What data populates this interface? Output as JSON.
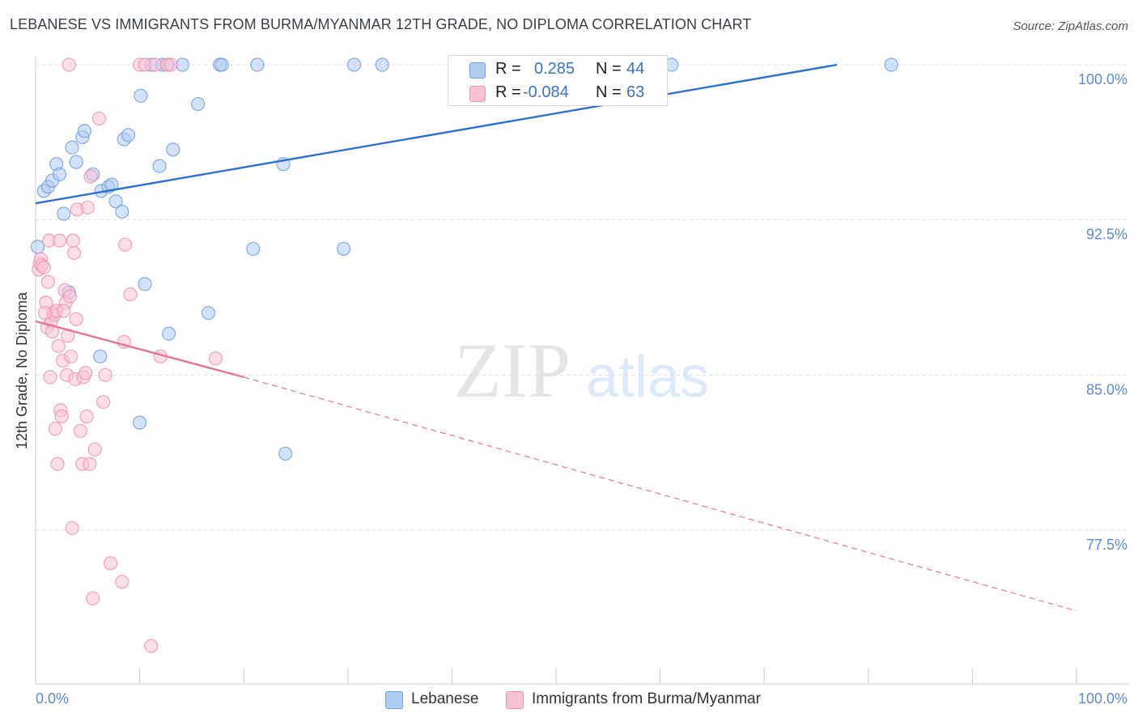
{
  "title": "LEBANESE VS IMMIGRANTS FROM BURMA/MYANMAR 12TH GRADE, NO DIPLOMA CORRELATION CHART",
  "source": "Source: ZipAtlas.com",
  "watermark": {
    "zip": "ZIP",
    "atlas": "atlas"
  },
  "legend": {
    "r_label": "R =",
    "n_label": "N =",
    "rows": [
      {
        "r": "0.285",
        "n": "44",
        "color": "#aecbf0",
        "border": "#6f9fe0"
      },
      {
        "r": "-0.084",
        "n": "63",
        "color": "#f8c4d4",
        "border": "#ee92b0"
      }
    ]
  },
  "chart_data": {
    "type": "scatter",
    "title": "LEBANESE VS IMMIGRANTS FROM BURMA/MYANMAR 12TH GRADE, NO DIPLOMA CORRELATION CHART",
    "xlabel": "",
    "ylabel": "12th Grade, No Diploma",
    "xlim": [
      0,
      100
    ],
    "ylim": [
      70.5,
      101.2
    ],
    "x_tick_labels": [
      "0.0%",
      "100.0%"
    ],
    "y_ticks": [
      100.0,
      92.5,
      85.0,
      77.5
    ],
    "y_tick_labels": [
      "100.0%",
      "92.5%",
      "85.0%",
      "77.5%"
    ],
    "series": [
      {
        "name": "Lebanese",
        "color": "#6f9fe0",
        "fill": "#aecbf0",
        "points": [
          [
            0.2,
            91.2
          ],
          [
            0.8,
            93.9
          ],
          [
            1.2,
            94.1
          ],
          [
            1.6,
            94.4
          ],
          [
            2.0,
            95.2
          ],
          [
            2.3,
            94.7
          ],
          [
            2.7,
            92.8
          ],
          [
            3.2,
            89.0
          ],
          [
            3.5,
            96.0
          ],
          [
            3.9,
            95.3
          ],
          [
            4.5,
            96.5
          ],
          [
            4.7,
            96.8
          ],
          [
            5.5,
            94.7
          ],
          [
            6.2,
            85.9
          ],
          [
            6.3,
            93.9
          ],
          [
            7.0,
            94.1
          ],
          [
            7.3,
            94.2
          ],
          [
            7.7,
            93.4
          ],
          [
            8.3,
            92.9
          ],
          [
            8.5,
            96.4
          ],
          [
            8.9,
            96.6
          ],
          [
            10.0,
            82.7
          ],
          [
            10.1,
            98.5
          ],
          [
            10.5,
            89.4
          ],
          [
            11.1,
            100.0
          ],
          [
            11.9,
            95.1
          ],
          [
            12.2,
            100.0
          ],
          [
            12.7,
            100.0
          ],
          [
            12.8,
            87.0
          ],
          [
            13.2,
            95.9
          ],
          [
            14.1,
            100.0
          ],
          [
            15.6,
            98.1
          ],
          [
            16.6,
            88.0
          ],
          [
            17.7,
            100.0
          ],
          [
            17.9,
            100.0
          ],
          [
            20.9,
            91.1
          ],
          [
            21.3,
            100.0
          ],
          [
            23.8,
            95.2
          ],
          [
            24.0,
            81.2
          ],
          [
            29.6,
            91.1
          ],
          [
            30.6,
            100.0
          ],
          [
            33.3,
            100.0
          ],
          [
            61.1,
            100.0
          ],
          [
            82.2,
            100.0
          ]
        ]
      },
      {
        "name": "Immigrants from Burma/Myanmar",
        "color": "#ee92b0",
        "fill": "#f8c4d4",
        "points": [
          [
            0.3,
            90.1
          ],
          [
            0.4,
            90.4
          ],
          [
            0.5,
            90.6
          ],
          [
            0.6,
            90.3
          ],
          [
            0.8,
            90.2
          ],
          [
            1.0,
            88.5
          ],
          [
            1.1,
            87.3
          ],
          [
            1.2,
            89.5
          ],
          [
            1.3,
            91.5
          ],
          [
            1.4,
            84.9
          ],
          [
            1.5,
            87.6
          ],
          [
            1.6,
            87.1
          ],
          [
            1.7,
            88.0
          ],
          [
            1.8,
            87.9
          ],
          [
            1.9,
            82.4
          ],
          [
            2.0,
            88.1
          ],
          [
            2.1,
            80.7
          ],
          [
            2.2,
            86.4
          ],
          [
            2.3,
            91.5
          ],
          [
            2.4,
            83.3
          ],
          [
            2.5,
            83.0
          ],
          [
            2.6,
            85.7
          ],
          [
            2.8,
            89.1
          ],
          [
            2.9,
            88.5
          ],
          [
            3.0,
            85.0
          ],
          [
            3.1,
            86.9
          ],
          [
            3.3,
            88.8
          ],
          [
            3.4,
            85.9
          ],
          [
            3.5,
            77.6
          ],
          [
            3.6,
            91.5
          ],
          [
            3.7,
            90.9
          ],
          [
            3.8,
            84.8
          ],
          [
            3.9,
            87.7
          ],
          [
            4.0,
            93.0
          ],
          [
            4.3,
            82.3
          ],
          [
            4.5,
            80.7
          ],
          [
            4.6,
            84.9
          ],
          [
            4.8,
            85.1
          ],
          [
            4.9,
            83.0
          ],
          [
            5.0,
            93.1
          ],
          [
            5.2,
            80.7
          ],
          [
            5.3,
            94.6
          ],
          [
            5.5,
            74.2
          ],
          [
            5.7,
            81.4
          ],
          [
            6.1,
            97.4
          ],
          [
            6.5,
            83.7
          ],
          [
            6.7,
            85.0
          ],
          [
            7.2,
            75.9
          ],
          [
            8.3,
            75.0
          ],
          [
            8.5,
            86.6
          ],
          [
            8.6,
            91.3
          ],
          [
            9.1,
            88.9
          ],
          [
            10.0,
            100.0
          ],
          [
            10.5,
            100.0
          ],
          [
            11.1,
            71.9
          ],
          [
            11.5,
            100.0
          ],
          [
            12.0,
            85.9
          ],
          [
            12.6,
            100.0
          ],
          [
            13.0,
            100.0
          ],
          [
            17.3,
            85.8
          ],
          [
            3.2,
            100.0
          ],
          [
            0.9,
            88.0
          ],
          [
            2.7,
            88.1
          ]
        ]
      }
    ],
    "trend_lines": [
      {
        "series": "Lebanese",
        "style": "solid",
        "x": [
          0,
          77
        ],
        "y": [
          93.3,
          100.0
        ]
      },
      {
        "series": "Immigrants from Burma/Myanmar",
        "style": "solid",
        "x": [
          0,
          20
        ],
        "y": [
          87.6,
          84.9
        ]
      },
      {
        "series": "Immigrants from Burma/Myanmar",
        "style": "dashed",
        "x": [
          20,
          100
        ],
        "y": [
          84.9,
          73.6
        ]
      }
    ]
  },
  "bottom_legend": [
    "Lebanese",
    "Immigrants from Burma/Myanmar"
  ]
}
